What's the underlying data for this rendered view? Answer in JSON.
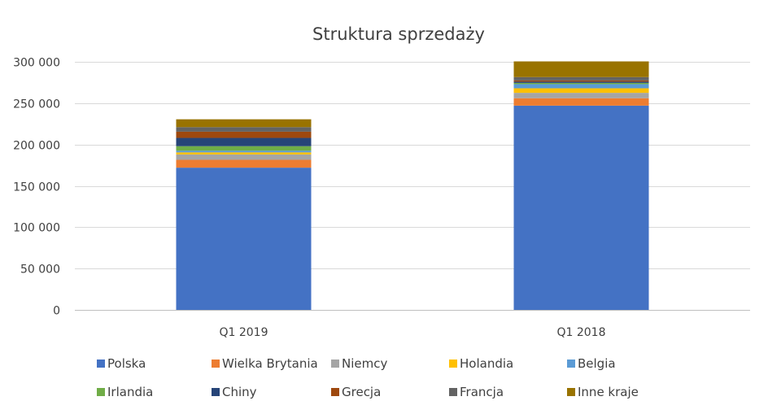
{
  "chart_data": {
    "type": "bar",
    "stacked": true,
    "title": "Struktura sprzedaży",
    "xlabel": "",
    "ylabel": "",
    "ylim": [
      0,
      300000
    ],
    "yticks": [
      0,
      50000,
      100000,
      150000,
      200000,
      250000,
      300000
    ],
    "ytick_labels": [
      "0",
      "50 000",
      "100 000",
      "150 000",
      "200 000",
      "250 000",
      "300 000"
    ],
    "grid": true,
    "legend_position": "bottom",
    "categories": [
      "Q1 2019",
      "Q1 2018"
    ],
    "series": [
      {
        "name": "Polska",
        "color": "#4472C4",
        "values": [
          172000,
          247000
        ]
      },
      {
        "name": "Wielka Brytania",
        "color": "#ED7D31",
        "values": [
          9500,
          9000
        ]
      },
      {
        "name": "Niemcy",
        "color": "#A5A5A5",
        "values": [
          6500,
          6500
        ]
      },
      {
        "name": "Holandia",
        "color": "#FFC000",
        "values": [
          2500,
          5500
        ]
      },
      {
        "name": "Belgia",
        "color": "#5B9BD5",
        "values": [
          2000,
          5000
        ]
      },
      {
        "name": "Irlandia",
        "color": "#70AD47",
        "values": [
          5500,
          1500
        ]
      },
      {
        "name": "Chiny",
        "color": "#264478",
        "values": [
          10000,
          1500
        ]
      },
      {
        "name": "Grecja",
        "color": "#9E480E",
        "values": [
          7500,
          1500
        ]
      },
      {
        "name": "Francja",
        "color": "#636363",
        "values": [
          5500,
          4000
        ]
      },
      {
        "name": "Inne kraje",
        "color": "#997300",
        "values": [
          9500,
          19000
        ]
      }
    ]
  }
}
